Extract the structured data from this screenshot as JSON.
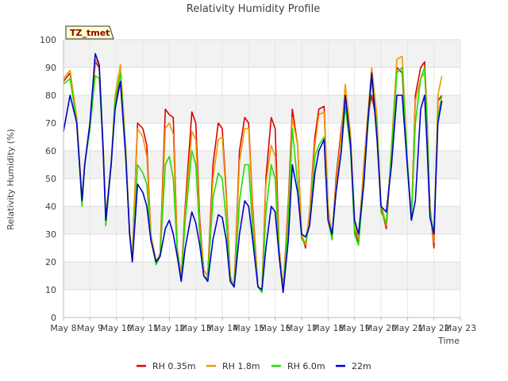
{
  "chart_data": {
    "type": "line",
    "title": "Relativity Humidity Profile",
    "xlabel": "Time",
    "ylabel": "Relativity Humidity (%)",
    "badge": "TZ_tmet",
    "xlim": [
      8,
      23
    ],
    "ylim": [
      0,
      100
    ],
    "grid": true,
    "legend_position": "bottom",
    "x_ticks": [
      {
        "value": 8,
        "label": "May 8"
      },
      {
        "value": 9,
        "label": "May 9"
      },
      {
        "value": 10,
        "label": "May 10"
      },
      {
        "value": 11,
        "label": "May 11"
      },
      {
        "value": 12,
        "label": "May 12"
      },
      {
        "value": 13,
        "label": "May 13"
      },
      {
        "value": 14,
        "label": "May 14"
      },
      {
        "value": 15,
        "label": "May 15"
      },
      {
        "value": 16,
        "label": "May 16"
      },
      {
        "value": 17,
        "label": "May 17"
      },
      {
        "value": 18,
        "label": "May 18"
      },
      {
        "value": 19,
        "label": "May 19"
      },
      {
        "value": 20,
        "label": "May 20"
      },
      {
        "value": 21,
        "label": "May 21"
      },
      {
        "value": 22,
        "label": "May 22"
      },
      {
        "value": 23,
        "label": "May 23"
      }
    ],
    "y_ticks": [
      0,
      10,
      20,
      30,
      40,
      50,
      60,
      70,
      80,
      90,
      100
    ],
    "series": [
      {
        "name": "RH 0.35m",
        "color": "#dd0000",
        "x": [
          8.0,
          8.25,
          8.5,
          8.7,
          8.8,
          9.0,
          9.2,
          9.35,
          9.5,
          9.6,
          9.8,
          9.95,
          10.15,
          10.35,
          10.5,
          10.6,
          10.8,
          11.0,
          11.15,
          11.3,
          11.5,
          11.65,
          11.85,
          12.0,
          12.15,
          12.3,
          12.45,
          12.6,
          12.85,
          13.0,
          13.15,
          13.3,
          13.45,
          13.65,
          13.85,
          14.0,
          14.15,
          14.3,
          14.45,
          14.65,
          14.85,
          15.0,
          15.15,
          15.35,
          15.5,
          15.65,
          15.85,
          16.0,
          16.15,
          16.3,
          16.5,
          16.65,
          16.85,
          17.0,
          17.15,
          17.3,
          17.5,
          17.65,
          17.85,
          18.0,
          18.15,
          18.3,
          18.5,
          18.65,
          18.85,
          19.0,
          19.15,
          19.35,
          19.5,
          19.65,
          19.85,
          20.0,
          20.2,
          20.4,
          20.6,
          20.8,
          21.0,
          21.15,
          21.3,
          21.5,
          21.65,
          21.75,
          21.85,
          22.0,
          22.15,
          22.3
        ],
        "y": [
          85,
          88,
          70,
          42,
          55,
          68,
          92,
          90,
          60,
          35,
          55,
          78,
          85,
          60,
          30,
          22,
          70,
          68,
          62,
          30,
          20,
          23,
          75,
          73,
          72,
          25,
          15,
          40,
          74,
          70,
          35,
          17,
          15,
          55,
          70,
          68,
          45,
          15,
          11,
          60,
          72,
          70,
          40,
          11,
          10,
          50,
          72,
          68,
          25,
          10,
          42,
          75,
          62,
          30,
          25,
          38,
          65,
          75,
          76,
          40,
          28,
          50,
          68,
          80,
          65,
          32,
          27,
          55,
          72,
          80,
          70,
          40,
          32,
          60,
          90,
          88,
          55,
          35,
          80,
          90,
          92,
          70,
          40,
          25,
          78,
          80
        ]
      },
      {
        "name": "RH 1.8m",
        "color": "#ee9900",
        "x": [
          8.0,
          8.25,
          8.5,
          8.7,
          8.8,
          9.0,
          9.2,
          9.35,
          9.5,
          9.6,
          9.8,
          9.95,
          10.15,
          10.35,
          10.5,
          10.6,
          10.8,
          11.0,
          11.15,
          11.3,
          11.5,
          11.65,
          11.85,
          12.0,
          12.15,
          12.3,
          12.45,
          12.6,
          12.85,
          13.0,
          13.15,
          13.3,
          13.45,
          13.65,
          13.85,
          14.0,
          14.15,
          14.3,
          14.45,
          14.65,
          14.85,
          15.0,
          15.15,
          15.35,
          15.5,
          15.65,
          15.85,
          16.0,
          16.15,
          16.3,
          16.5,
          16.65,
          16.85,
          17.0,
          17.15,
          17.3,
          17.5,
          17.65,
          17.85,
          18.0,
          18.15,
          18.3,
          18.5,
          18.65,
          18.85,
          19.0,
          19.15,
          19.35,
          19.5,
          19.65,
          19.85,
          20.0,
          20.2,
          20.4,
          20.6,
          20.8,
          21.0,
          21.15,
          21.3,
          21.5,
          21.65,
          21.75,
          21.85,
          22.0,
          22.15,
          22.3
        ],
        "y": [
          86,
          89,
          72,
          43,
          55,
          70,
          93,
          91,
          62,
          36,
          56,
          80,
          91,
          62,
          31,
          22,
          68,
          65,
          58,
          30,
          20,
          23,
          68,
          70,
          66,
          25,
          15,
          38,
          67,
          64,
          33,
          17,
          15,
          50,
          64,
          65,
          43,
          15,
          11,
          56,
          68,
          68,
          38,
          11,
          10,
          48,
          62,
          58,
          25,
          10,
          40,
          72,
          62,
          30,
          26,
          38,
          62,
          73,
          74,
          40,
          29,
          48,
          66,
          84,
          66,
          33,
          28,
          55,
          73,
          90,
          72,
          41,
          33,
          62,
          93,
          94,
          56,
          36,
          78,
          86,
          88,
          70,
          40,
          27,
          80,
          87
        ]
      },
      {
        "name": "RH 6.0m",
        "color": "#22dd00",
        "x": [
          8.0,
          8.25,
          8.5,
          8.7,
          8.8,
          9.0,
          9.2,
          9.35,
          9.5,
          9.6,
          9.8,
          9.95,
          10.15,
          10.35,
          10.5,
          10.6,
          10.8,
          11.0,
          11.15,
          11.3,
          11.5,
          11.65,
          11.85,
          12.0,
          12.15,
          12.3,
          12.45,
          12.6,
          12.85,
          13.0,
          13.15,
          13.3,
          13.45,
          13.65,
          13.85,
          14.0,
          14.15,
          14.3,
          14.45,
          14.65,
          14.85,
          15.0,
          15.15,
          15.35,
          15.5,
          15.65,
          15.85,
          16.0,
          16.15,
          16.3,
          16.5,
          16.65,
          16.85,
          17.0,
          17.15,
          17.3,
          17.5,
          17.65,
          17.85,
          18.0,
          18.15,
          18.3,
          18.5,
          18.65,
          18.85,
          19.0,
          19.15,
          19.35,
          19.5,
          19.65,
          19.85,
          20.0,
          20.2,
          20.4,
          20.6,
          20.8,
          21.0,
          21.15,
          21.3,
          21.5,
          21.65,
          21.75,
          21.85,
          22.0,
          22.15,
          22.3
        ],
        "y": [
          84,
          86,
          70,
          40,
          55,
          68,
          87,
          86,
          60,
          33,
          55,
          78,
          88,
          60,
          30,
          20,
          55,
          52,
          48,
          28,
          19,
          22,
          55,
          58,
          50,
          24,
          13,
          35,
          60,
          55,
          30,
          15,
          14,
          43,
          52,
          50,
          35,
          14,
          11,
          42,
          55,
          55,
          32,
          11,
          9,
          38,
          55,
          50,
          22,
          10,
          35,
          68,
          48,
          28,
          27,
          33,
          58,
          62,
          65,
          35,
          28,
          45,
          60,
          76,
          60,
          30,
          26,
          48,
          68,
          86,
          68,
          38,
          34,
          60,
          88,
          90,
          56,
          35,
          70,
          86,
          90,
          68,
          38,
          30,
          72,
          80
        ]
      },
      {
        "name": "22m",
        "color": "#0000cc",
        "x": [
          8.0,
          8.25,
          8.5,
          8.7,
          8.8,
          9.0,
          9.2,
          9.35,
          9.5,
          9.6,
          9.8,
          9.95,
          10.15,
          10.35,
          10.5,
          10.6,
          10.8,
          11.0,
          11.15,
          11.3,
          11.5,
          11.65,
          11.85,
          12.0,
          12.15,
          12.3,
          12.45,
          12.6,
          12.85,
          13.0,
          13.15,
          13.3,
          13.45,
          13.65,
          13.85,
          14.0,
          14.15,
          14.3,
          14.45,
          14.65,
          14.85,
          15.0,
          15.15,
          15.35,
          15.5,
          15.65,
          15.85,
          16.0,
          16.15,
          16.3,
          16.5,
          16.65,
          16.85,
          17.0,
          17.15,
          17.3,
          17.5,
          17.65,
          17.85,
          18.0,
          18.15,
          18.3,
          18.5,
          18.65,
          18.85,
          19.0,
          19.15,
          19.35,
          19.5,
          19.65,
          19.85,
          20.0,
          20.2,
          20.4,
          20.6,
          20.8,
          21.0,
          21.15,
          21.3,
          21.5,
          21.65,
          21.75,
          21.85,
          22.0,
          22.15,
          22.3
        ],
        "y": [
          67,
          80,
          70,
          42,
          55,
          70,
          95,
          91,
          60,
          35,
          55,
          75,
          85,
          58,
          30,
          20,
          48,
          45,
          40,
          28,
          20,
          22,
          32,
          35,
          30,
          22,
          13,
          25,
          38,
          34,
          26,
          15,
          13,
          28,
          37,
          36,
          28,
          13,
          11,
          30,
          42,
          40,
          28,
          11,
          10,
          25,
          40,
          38,
          22,
          9,
          28,
          55,
          45,
          30,
          29,
          33,
          52,
          60,
          64,
          35,
          30,
          45,
          60,
          80,
          62,
          35,
          30,
          48,
          70,
          88,
          64,
          40,
          38,
          55,
          80,
          80,
          54,
          35,
          42,
          75,
          80,
          60,
          36,
          30,
          70,
          78
        ]
      }
    ]
  }
}
